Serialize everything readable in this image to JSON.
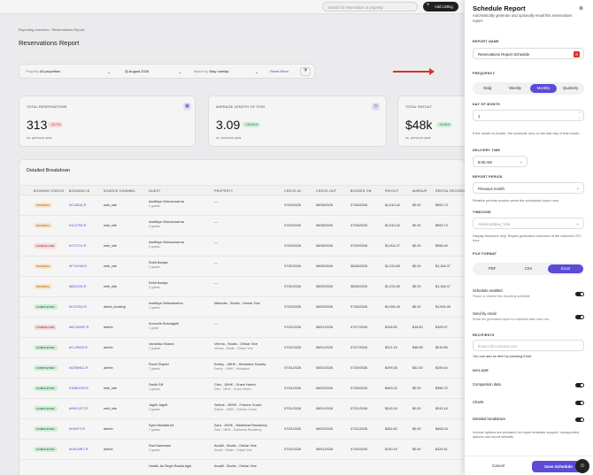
{
  "topbar": {
    "search_placeholder": "Search for reservation or property",
    "add_listing": "Add Listing"
  },
  "breadcrumb": "Reporting overview › Reservations Report",
  "page_title": "Reservations Report",
  "filters": {
    "property_label": "Property",
    "property_value": "All properties",
    "date_value": "August 2026",
    "match_label": "Match by",
    "match_value": "Stay overlap",
    "reset": "Reset filters"
  },
  "kpis": [
    {
      "label": "TOTAL RESERVATIONS",
      "value": "313",
      "badge": "-10.7%",
      "sub": "vs. previous year"
    },
    {
      "label": "AVERAGE LENGTH OF STAY",
      "value": "3.09",
      "badge": "+28.64%",
      "sub": "vs. previous year"
    },
    {
      "label": "TOTAL PAYOUT",
      "value": "$48k",
      "badge": "+6.96%",
      "sub": "vs. previous year"
    }
  ],
  "table": {
    "title": "Detailed Breakdown",
    "headers": [
      "BOOKING STATUS",
      "BOOKING ID",
      "SOURCE CHANNEL",
      "GUEST",
      "PROPERTY",
      "CHECK-IN",
      "CHECK-OUT",
      "BOOKED ON",
      "PAYOUT",
      "MARKUP",
      "RENTAL RECORD"
    ],
    "rows": [
      [
        "PENDING",
        "#C12814-R",
        "web_site",
        "Aadithya Vishwa-karma",
        "2 guests",
        "—",
        "",
        "07/29/2026",
        "08/08/2026",
        "07/28/2026",
        "$1,043.42",
        "$0.00",
        "$993.73"
      ],
      [
        "PENDING",
        "#1C2753-R",
        "web_site",
        "Aadithya Vishwa-karma",
        "2 guests",
        "—",
        "",
        "07/29/2026",
        "08/08/2026",
        "07/28/2026",
        "$1,043.42",
        "$0.00",
        "$993.73"
      ],
      [
        "CANCELLED",
        "#17277U-R",
        "web_site",
        "Aadithya Vishwa-karma",
        "2 guests",
        "—",
        "",
        "07/29/2026",
        "08/08/2026",
        "07/29/2026",
        "$1,004.27",
        "$0.00",
        "$956.45"
      ],
      [
        "PENDING",
        "#FY4V48-R",
        "web_site",
        "Rohit Baniya",
        "2 guests",
        "—",
        "",
        "07/30/2026",
        "08/05/2026",
        "06/28/2026",
        "$1,224.69",
        "$0.00",
        "$1,166.37"
      ],
      [
        "PENDING",
        "#8ZUJ33-R",
        "web_site",
        "Rohit Baniya",
        "2 guests",
        "—",
        "",
        "07/30/2026",
        "08/05/2026",
        "06/28/2026",
        "$1,224.69",
        "$0.00",
        "$1,166.37"
      ],
      [
        "COMPLETED",
        "#CX0S3J-R",
        "direct_booking",
        "Aadithya Vishwakarma",
        "2 guests",
        "Marbella - Studio - Omkar Vive",
        "",
        "07/29/2026",
        "08/09/2026",
        "07/28/2026",
        "$1,094.49",
        "$0.00",
        "$1,094.49"
      ],
      [
        "CANCELLED",
        "#8CVA53F-R",
        "airbnb",
        "Anouchk Khanagale",
        "1 guest",
        "—",
        "",
        "07/31/2026",
        "08/01/2026",
        "07/27/2026",
        "$128.69",
        "$16.80",
        "$105.97"
      ],
      [
        "COMPLETED",
        "#CL2BG5-R",
        "airbnb",
        "Vanshika Sharan",
        "2 guests",
        "Vienna - Studio - Omkar Vive",
        "Vienna - Studio - Omkar Vive",
        "07/31/2026",
        "08/01/2026",
        "07/27/2026",
        "$221.15",
        "$48.98",
        "$215.89"
      ],
      [
        "COMPLETED",
        "#QSN96C-R",
        "airbnb",
        "Ruchi Dhyani",
        "2 guests",
        "Earthy - 1BHK - Hinduston Society",
        "Earthy - 1BHK - Hinduston",
        "07/31/2026",
        "08/02/2026",
        "07/29/2026",
        "$199.36",
        "$31.92",
        "$159.44"
      ],
      [
        "COMPLETED",
        "#TN6DGR-R",
        "web_site",
        "Sahib Gill",
        "2 guests",
        "Cleo - 1BHK - Grace Haven",
        "Cleo - 1BHK - Grace Haven",
        "07/31/2026",
        "08/03/2026",
        "07/28/2026",
        "$400.02",
        "$0.00",
        "$396.70"
      ],
      [
        "COMPLETED",
        "#HKKUZ7-R",
        "web_site",
        "Jagriti Jagriti",
        "2 guests",
        "Selene - 2BHK - Fortune Crown",
        "Selene - 2BHK - Fortune Crown",
        "07/31/2026",
        "08/01/2026",
        "07/31/2026",
        "$243.16",
        "$0.00",
        "$243.16"
      ],
      [
        "COMPLETED",
        "#HX6FY-R",
        "airbnb",
        "Syed Mustafa Ali",
        "2 guests",
        "Zara - 1BHK - Radheera Residency",
        "Zara - 1BHK - Radheera Residency",
        "07/31/2026",
        "08/02/2026",
        "07/31/2026",
        "$452.82",
        "$0.00",
        "$406.03"
      ],
      [
        "COMPLETED",
        "#HXLMN7-R",
        "airbnb",
        "Ravi Kashwani",
        "2 guests",
        "Amalfi - Studio - Omkar Vive",
        "Amalfi - Studio - Omkar Vive",
        "07/31/2026",
        "08/01/2026",
        "07/30/2026",
        "$130.15",
        "$0.00",
        "$120.41"
      ],
      [
        "",
        "",
        "",
        "Hardik Jai Singh Radda Agle",
        "",
        "Amalfi - Studio - Omkar Vive",
        "",
        "",
        "",
        "",
        "",
        "",
        ""
      ]
    ]
  },
  "drawer": {
    "title": "Schedule Report",
    "subtitle": "Automatically generate and optionally email this reservations report.",
    "report_name_label": "REPORT NAME",
    "report_name_value": "Reservations Report Schedule",
    "frequency_label": "FREQUENCY",
    "frequency_options": [
      "Daily",
      "Weekly",
      "Monthly",
      "Quarterly"
    ],
    "day_of_month_label": "DAY OF MONTH",
    "day_of_month_value": "1",
    "day_hint": "If the month is shorter, the schedule runs on the last day of that month.",
    "delivery_time_label": "DELIVERY TIME",
    "delivery_time_value": "8:00 AM",
    "report_period_label": "REPORT PERIOD",
    "report_period_value": "Previous month",
    "period_hint": "Relative periods resolve when the scheduled report runs.",
    "timezone_label": "TIMEZONE",
    "timezone_value": "America/New_York",
    "timezone_hint": "Display timezone only. Report generation executes at the selected UTC hour.",
    "file_format_label": "FILE FORMAT",
    "file_formats": [
      "PDF",
      "CSV",
      "Excel"
    ],
    "schedule_enabled_label": "Schedule enabled",
    "schedule_enabled_hint": "Pause or resume this recurring schedule.",
    "send_email_label": "Send by email",
    "send_email_hint": "Email the generated report to recipients after each run.",
    "recipients_label": "RECIPIENTS",
    "recipients_placeholder": "finance@company.com",
    "recipients_hint": "You can add an item by pressing Enter",
    "include_label": "INCLUDE",
    "include_items": [
      "Comparison data",
      "Charts",
      "Detailed breakdown"
    ],
    "include_hint": "Include options are prepared for report template support; unsupported options use report defaults.",
    "cancel": "Cancel",
    "save": "Save Schedule"
  },
  "colors": {
    "accent": "#5b4bd6",
    "arrow": "#e0332b"
  }
}
